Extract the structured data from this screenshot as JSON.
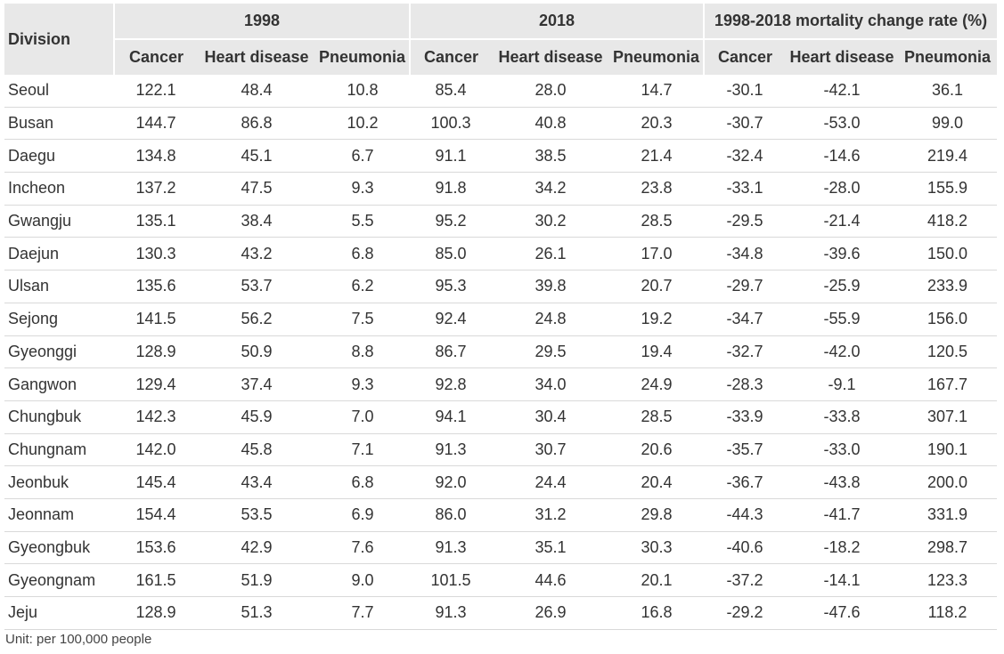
{
  "header": {
    "division": "Division",
    "groups": [
      "1998",
      "2018",
      "1998-2018 mortality change rate (%)"
    ],
    "subcols": [
      "Cancer",
      "Heart disease",
      "Pneumonia"
    ]
  },
  "rows": [
    {
      "division": "Seoul",
      "values": [
        "122.1",
        "48.4",
        "10.8",
        "85.4",
        "28.0",
        "14.7",
        "-30.1",
        "-42.1",
        "36.1"
      ]
    },
    {
      "division": "Busan",
      "values": [
        "144.7",
        "86.8",
        "10.2",
        "100.3",
        "40.8",
        "20.3",
        "-30.7",
        "-53.0",
        "99.0"
      ]
    },
    {
      "division": "Daegu",
      "values": [
        "134.8",
        "45.1",
        "6.7",
        "91.1",
        "38.5",
        "21.4",
        "-32.4",
        "-14.6",
        "219.4"
      ]
    },
    {
      "division": "Incheon",
      "values": [
        "137.2",
        "47.5",
        "9.3",
        "91.8",
        "34.2",
        "23.8",
        "-33.1",
        "-28.0",
        "155.9"
      ]
    },
    {
      "division": "Gwangju",
      "values": [
        "135.1",
        "38.4",
        "5.5",
        "95.2",
        "30.2",
        "28.5",
        "-29.5",
        "-21.4",
        "418.2"
      ]
    },
    {
      "division": "Daejun",
      "values": [
        "130.3",
        "43.2",
        "6.8",
        "85.0",
        "26.1",
        "17.0",
        "-34.8",
        "-39.6",
        "150.0"
      ]
    },
    {
      "division": "Ulsan",
      "values": [
        "135.6",
        "53.7",
        "6.2",
        "95.3",
        "39.8",
        "20.7",
        "-29.7",
        "-25.9",
        "233.9"
      ]
    },
    {
      "division": "Sejong",
      "values": [
        "141.5",
        "56.2",
        "7.5",
        "92.4",
        "24.8",
        "19.2",
        "-34.7",
        "-55.9",
        "156.0"
      ]
    },
    {
      "division": "Gyeonggi",
      "values": [
        "128.9",
        "50.9",
        "8.8",
        "86.7",
        "29.5",
        "19.4",
        "-32.7",
        "-42.0",
        "120.5"
      ]
    },
    {
      "division": "Gangwon",
      "values": [
        "129.4",
        "37.4",
        "9.3",
        "92.8",
        "34.0",
        "24.9",
        "-28.3",
        "-9.1",
        "167.7"
      ]
    },
    {
      "division": "Chungbuk",
      "values": [
        "142.3",
        "45.9",
        "7.0",
        "94.1",
        "30.4",
        "28.5",
        "-33.9",
        "-33.8",
        "307.1"
      ]
    },
    {
      "division": "Chungnam",
      "values": [
        "142.0",
        "45.8",
        "7.1",
        "91.3",
        "30.7",
        "20.6",
        "-35.7",
        "-33.0",
        "190.1"
      ]
    },
    {
      "division": "Jeonbuk",
      "values": [
        "145.4",
        "43.4",
        "6.8",
        "92.0",
        "24.4",
        "20.4",
        "-36.7",
        "-43.8",
        "200.0"
      ]
    },
    {
      "division": "Jeonnam",
      "values": [
        "154.4",
        "53.5",
        "6.9",
        "86.0",
        "31.2",
        "29.8",
        "-44.3",
        "-41.7",
        "331.9"
      ]
    },
    {
      "division": "Gyeongbuk",
      "values": [
        "153.6",
        "42.9",
        "7.6",
        "91.3",
        "35.1",
        "30.3",
        "-40.6",
        "-18.2",
        "298.7"
      ]
    },
    {
      "division": "Gyeongnam",
      "values": [
        "161.5",
        "51.9",
        "9.0",
        "101.5",
        "44.6",
        "20.1",
        "-37.2",
        "-14.1",
        "123.3"
      ]
    },
    {
      "division": "Jeju",
      "values": [
        "128.9",
        "51.3",
        "7.7",
        "91.3",
        "26.9",
        "16.8",
        "-29.2",
        "-47.6",
        "118.2"
      ]
    }
  ],
  "footnote": "Unit: per 100,000 people"
}
